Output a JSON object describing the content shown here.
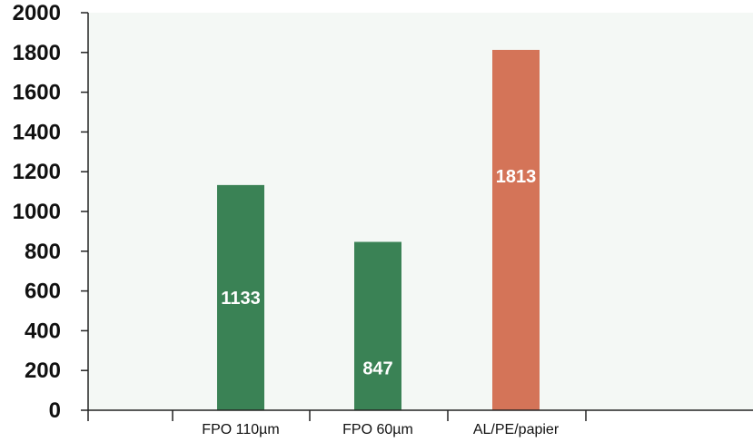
{
  "chart_data": {
    "type": "bar",
    "title": "",
    "xlabel": "",
    "ylabel": "",
    "categories": [
      "FPO 110µm",
      "FPO 60µm",
      "AL/PE/papier"
    ],
    "values": [
      1133,
      847,
      1813
    ],
    "data_labels": [
      "1133",
      "847",
      "1813"
    ],
    "ylim": [
      0,
      2000
    ],
    "yticks": [
      0,
      200,
      400,
      600,
      800,
      1000,
      1200,
      1400,
      1600,
      1800,
      2000
    ],
    "ytick_labels": [
      "0",
      "200",
      "400",
      "600",
      "800",
      "1000",
      "1200",
      "1400",
      "1600",
      "1800",
      "2000"
    ],
    "grid": false,
    "legend": "none",
    "colors": {
      "bars": [
        "#3a8255",
        "#3a8255",
        "#d47458"
      ],
      "plot_background": "#f4f8f5",
      "axis": "#222222",
      "data_label": "#ffffff"
    }
  }
}
